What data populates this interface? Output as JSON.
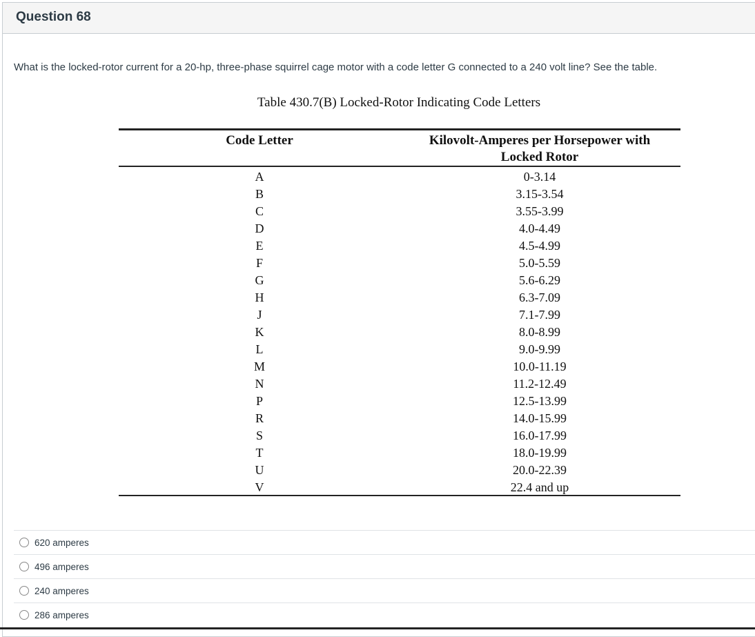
{
  "question": {
    "title": "Question 68",
    "text": "What is the locked-rotor current for a 20-hp, three-phase squirrel cage motor with a code letter G connected to a 240 volt line? See the table."
  },
  "table": {
    "caption": "Table 430.7(B) Locked-Rotor Indicating Code Letters",
    "headers": [
      "Code Letter",
      "Kilovolt-Amperes per Horsepower with",
      "Locked Rotor"
    ],
    "rows": [
      [
        "A",
        "0-3.14"
      ],
      [
        "B",
        "3.15-3.54"
      ],
      [
        "C",
        "3.55-3.99"
      ],
      [
        "D",
        "4.0-4.49"
      ],
      [
        "E",
        "4.5-4.99"
      ],
      [
        "F",
        "5.0-5.59"
      ],
      [
        "G",
        "5.6-6.29"
      ],
      [
        "H",
        "6.3-7.09"
      ],
      [
        "J",
        "7.1-7.99"
      ],
      [
        "K",
        "8.0-8.99"
      ],
      [
        "L",
        "9.0-9.99"
      ],
      [
        "M",
        "10.0-11.19"
      ],
      [
        "N",
        "11.2-12.49"
      ],
      [
        "P",
        "12.5-13.99"
      ],
      [
        "R",
        "14.0-15.99"
      ],
      [
        "S",
        "16.0-17.99"
      ],
      [
        "T",
        "18.0-19.99"
      ],
      [
        "U",
        "20.0-22.39"
      ],
      [
        "V",
        "22.4 and up"
      ]
    ]
  },
  "answers": [
    "620 amperes",
    "496 amperes",
    "240 amperes",
    "286 amperes"
  ]
}
